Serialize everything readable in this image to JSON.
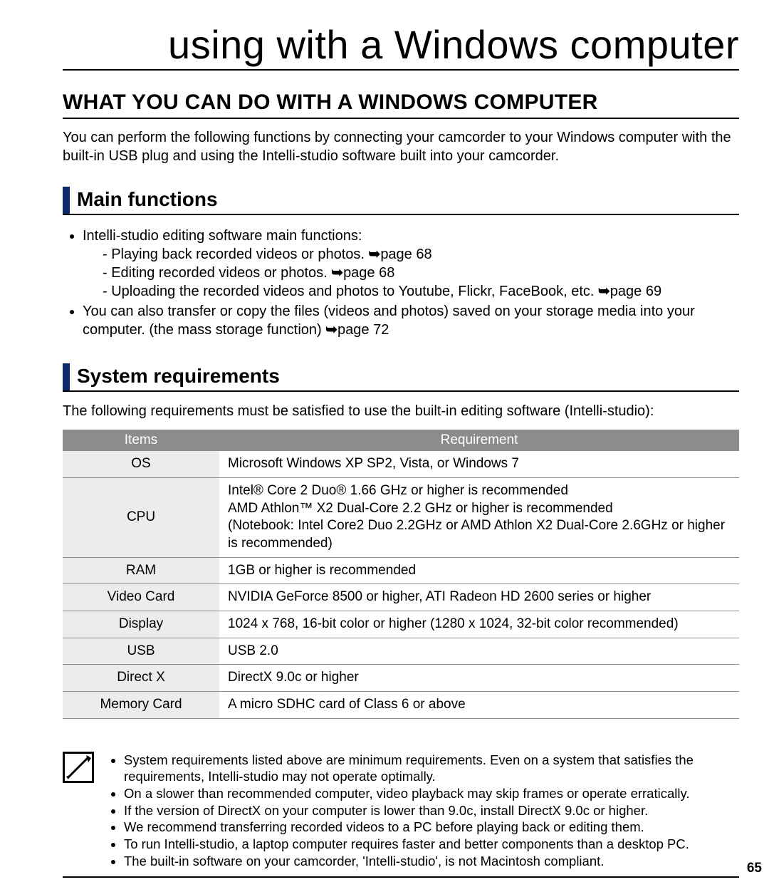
{
  "page_title": "using with a Windows computer",
  "section_title": "WHAT YOU CAN DO WITH A WINDOWS COMPUTER",
  "intro": "You can perform the following functions by connecting your camcorder to your Windows computer with the built-in USB plug and using the Intelli-studio software built into your camcorder.",
  "main_functions": {
    "heading": "Main functions",
    "item1_lead": "Intelli-studio editing software main functions:",
    "sub1": "Playing back recorded videos or photos. ",
    "sub1_page": "page 68",
    "sub2": "Editing recorded videos or photos. ",
    "sub2_page": "page 68",
    "sub3": "Uploading the recorded videos and photos to Youtube, Flickr, FaceBook, etc. ",
    "sub3_page": "page 69",
    "item2_a": "You can also transfer or copy the files (videos and photos) saved on your storage media into your computer. (the mass storage function) ",
    "item2_page": "page 72"
  },
  "sysreq": {
    "heading": "System requirements",
    "intro": "The following requirements must be satisfied to use the built-in editing software (Intelli-studio):",
    "headers": {
      "items": "Items",
      "req": "Requirement"
    },
    "rows": [
      {
        "item": "OS",
        "req": "Microsoft Windows XP SP2, Vista, or Windows 7"
      },
      {
        "item": "CPU",
        "req": "Intel® Core 2 Duo® 1.66 GHz or higher is recommended\nAMD Athlon™ X2 Dual-Core 2.2 GHz or higher is recommended\n(Notebook: Intel Core2 Duo 2.2GHz or AMD Athlon X2 Dual-Core 2.6GHz or higher is recommended)"
      },
      {
        "item": "RAM",
        "req": "1GB or higher is recommended"
      },
      {
        "item": "Video Card",
        "req": "NVIDIA GeForce 8500 or higher, ATI Radeon HD 2600 series or higher"
      },
      {
        "item": "Display",
        "req": "1024 x 768, 16-bit color or higher (1280 x 1024, 32-bit color recommended)"
      },
      {
        "item": "USB",
        "req": "USB 2.0"
      },
      {
        "item": "Direct X",
        "req": "DirectX 9.0c or higher"
      },
      {
        "item": "Memory Card",
        "req": "A micro SDHC card of Class 6 or above"
      }
    ]
  },
  "notes": [
    "System requirements listed above are minimum requirements. Even on a system that satisfies the requirements, Intelli-studio may not operate optimally.",
    "On a slower than recommended computer, video playback may skip frames or operate erratically.",
    "If the version of DirectX on your computer is lower than 9.0c, install DirectX 9.0c or higher.",
    "We recommend transferring recorded videos to a PC before playing back or editing them.",
    "To run Intelli-studio, a laptop computer requires faster and better components than a desktop PC.",
    "The built-in software on your camcorder, 'Intelli-studio', is not Macintosh compliant."
  ],
  "page_number": "65",
  "arrow": "➥"
}
